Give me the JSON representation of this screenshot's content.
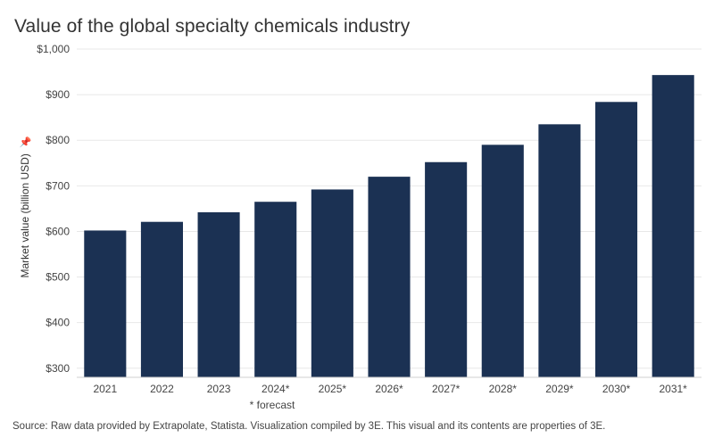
{
  "title": "Value of the global specialty chemicals industry",
  "note": "* forecast",
  "source": "Source: Raw data provided by Extrapolate, Statista. Visualization compiled by 3E. This visual and its contents are properties of 3E.",
  "pin_icon": "pin-icon",
  "colors": {
    "bar": "#1b3153",
    "grid": "#e8e8e8",
    "text": "#444444"
  },
  "chart_data": {
    "type": "bar",
    "title": "Value of the global specialty chemicals industry",
    "xlabel": "",
    "ylabel": "Market value (billion USD)",
    "categories": [
      "2021",
      "2022",
      "2023",
      "2024*",
      "2025*",
      "2026*",
      "2027*",
      "2028*",
      "2029*",
      "2030*",
      "2031*"
    ],
    "values": [
      602,
      621,
      642,
      665,
      692,
      720,
      752,
      790,
      835,
      884,
      943
    ],
    "ylim": [
      280,
      1000
    ],
    "yticks": [
      300,
      400,
      500,
      600,
      700,
      800,
      900,
      1000
    ],
    "ytick_labels": [
      "$300",
      "$400",
      "$500",
      "$600",
      "$700",
      "$800",
      "$900",
      "$1,000"
    ],
    "grid": true,
    "legend": "none"
  }
}
